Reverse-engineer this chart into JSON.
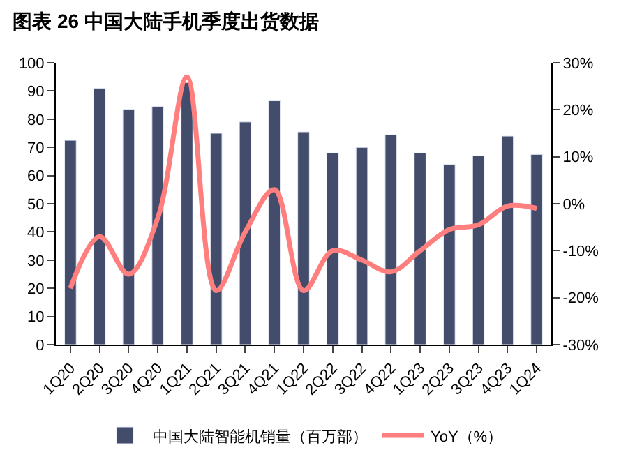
{
  "chart_data": {
    "type": "bar",
    "title": "图表 26 中国大陆手机季度出货数据",
    "categories": [
      "1Q20",
      "2Q20",
      "3Q20",
      "4Q20",
      "1Q21",
      "2Q21",
      "3Q21",
      "4Q21",
      "1Q22",
      "2Q22",
      "3Q22",
      "4Q22",
      "1Q23",
      "2Q23",
      "3Q23",
      "4Q23",
      "1Q24"
    ],
    "series": [
      {
        "name": "中国大陆智能机销量（百万部）",
        "color": "#444c6c",
        "values": [
          72.5,
          91,
          83.5,
          84.5,
          93,
          75,
          79,
          86.5,
          75.5,
          68,
          70,
          74.5,
          68,
          64,
          67,
          74,
          67.5
        ]
      },
      {
        "name": "YoY（%）",
        "type": "line",
        "axis": "y2",
        "color": "#ff7f7f",
        "values": [
          -18,
          -7,
          -15,
          -3,
          27,
          -18.5,
          -6,
          3,
          -18.5,
          -10,
          -12,
          -14.5,
          -10,
          -5.5,
          -4.5,
          -0.5,
          -1
        ]
      }
    ],
    "ylim": [
      0,
      100
    ],
    "yticks": [
      0,
      10,
      20,
      30,
      40,
      50,
      60,
      70,
      80,
      90,
      100
    ],
    "y2lim": [
      -30,
      30
    ],
    "y2ticks": [
      {
        "value": -30,
        "label": "-30%"
      },
      {
        "value": -20,
        "label": "-20%"
      },
      {
        "value": -10,
        "label": "-10%"
      },
      {
        "value": 0,
        "label": "0%"
      },
      {
        "value": 10,
        "label": "10%"
      },
      {
        "value": 20,
        "label": "20%"
      },
      {
        "value": 30,
        "label": "30%"
      }
    ],
    "legend": "bottom",
    "marker": "none",
    "line_style": "solid"
  }
}
